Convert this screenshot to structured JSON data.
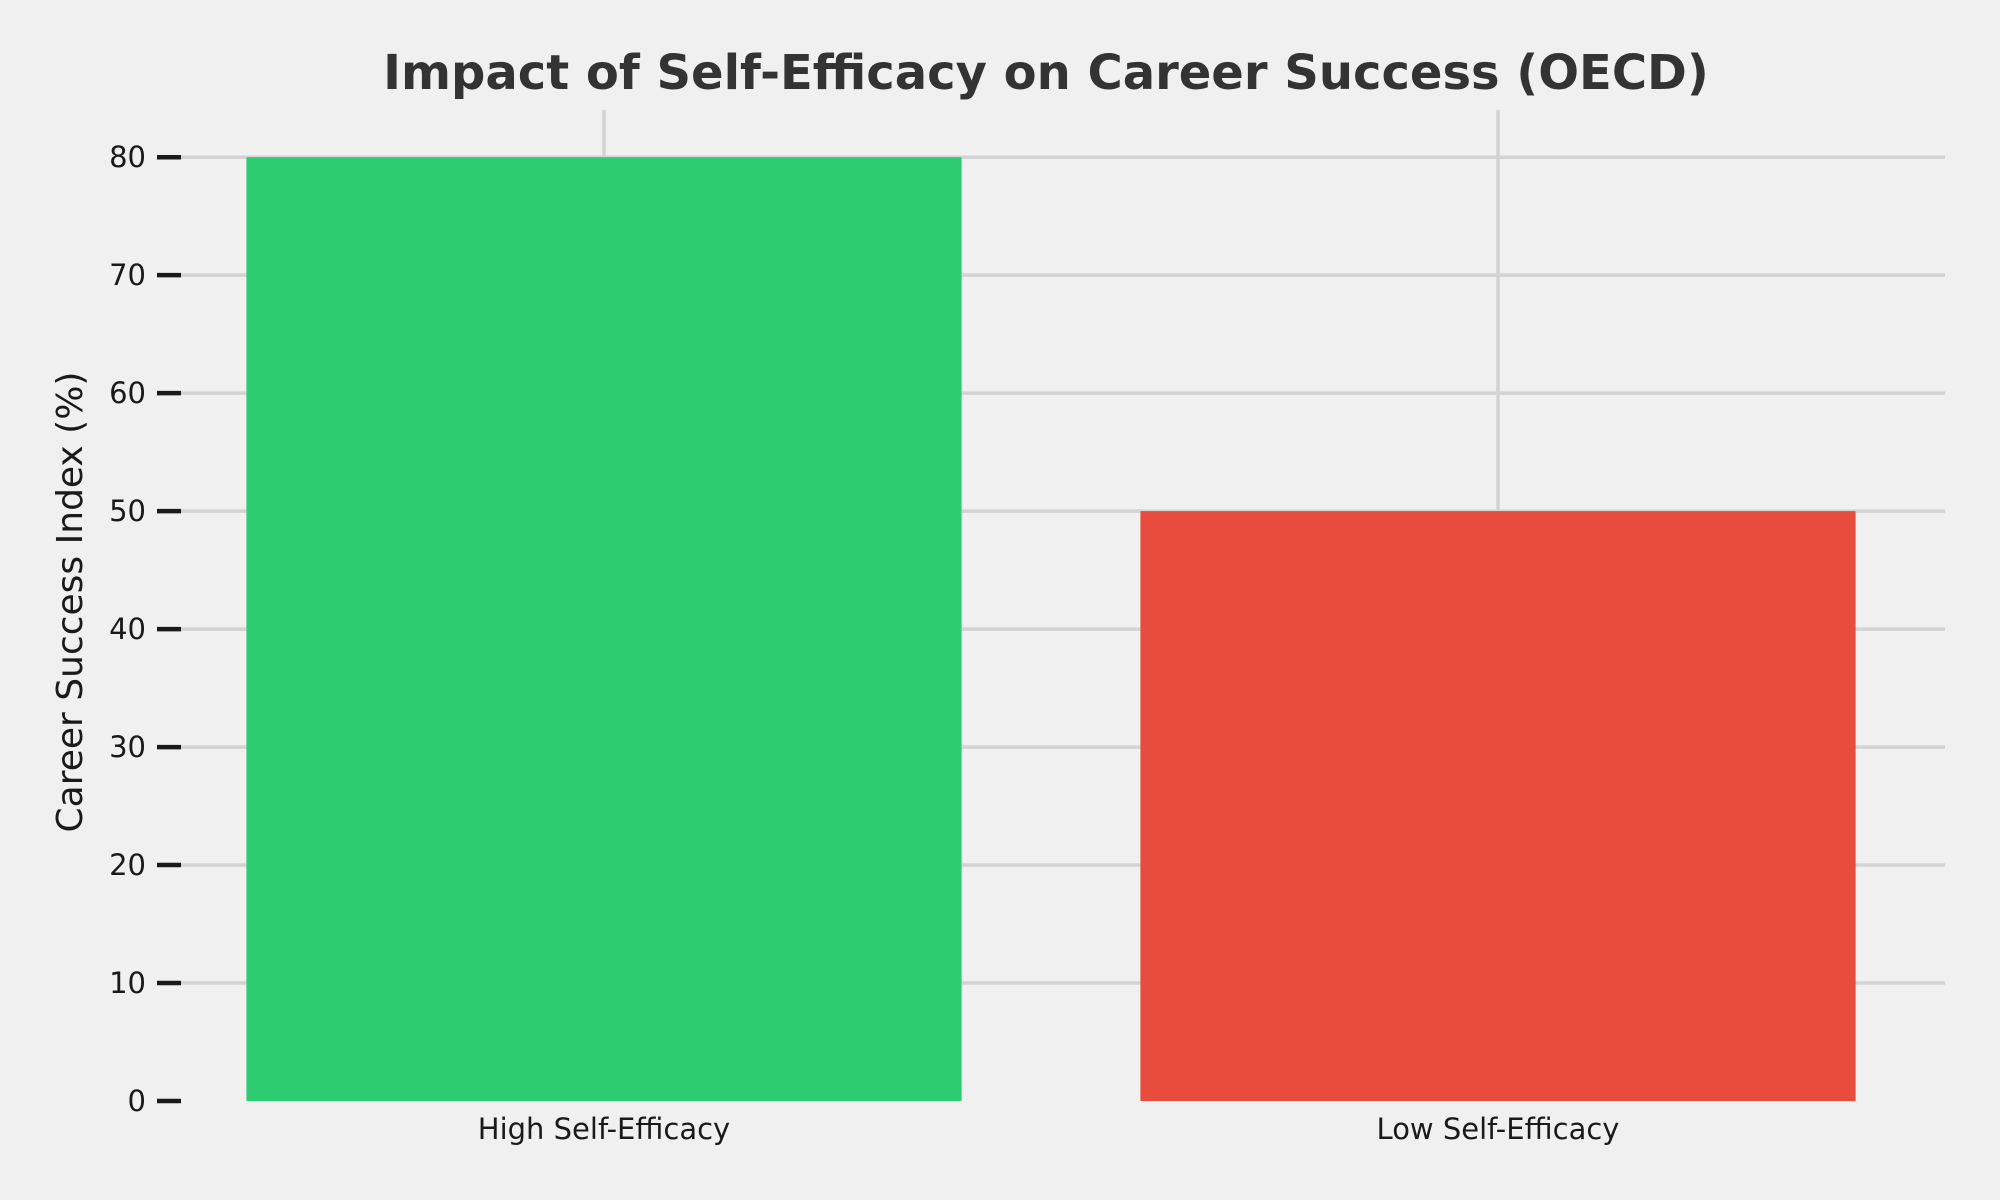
{
  "chart_data": {
    "type": "bar",
    "title": "Impact of Self-Efficacy on Career Success (OECD)",
    "xlabel": "",
    "ylabel": "Career Success Index (%)",
    "categories": [
      "High Self-Efficacy",
      "Low Self-Efficacy"
    ],
    "values": [
      80,
      50
    ],
    "colors": [
      "#2ecc71",
      "#e74c3c"
    ],
    "ylim": [
      0,
      84
    ],
    "yticks": [
      0,
      10,
      20,
      30,
      40,
      50,
      60,
      70,
      80
    ],
    "grid": true,
    "background": "#f0f0f0"
  }
}
